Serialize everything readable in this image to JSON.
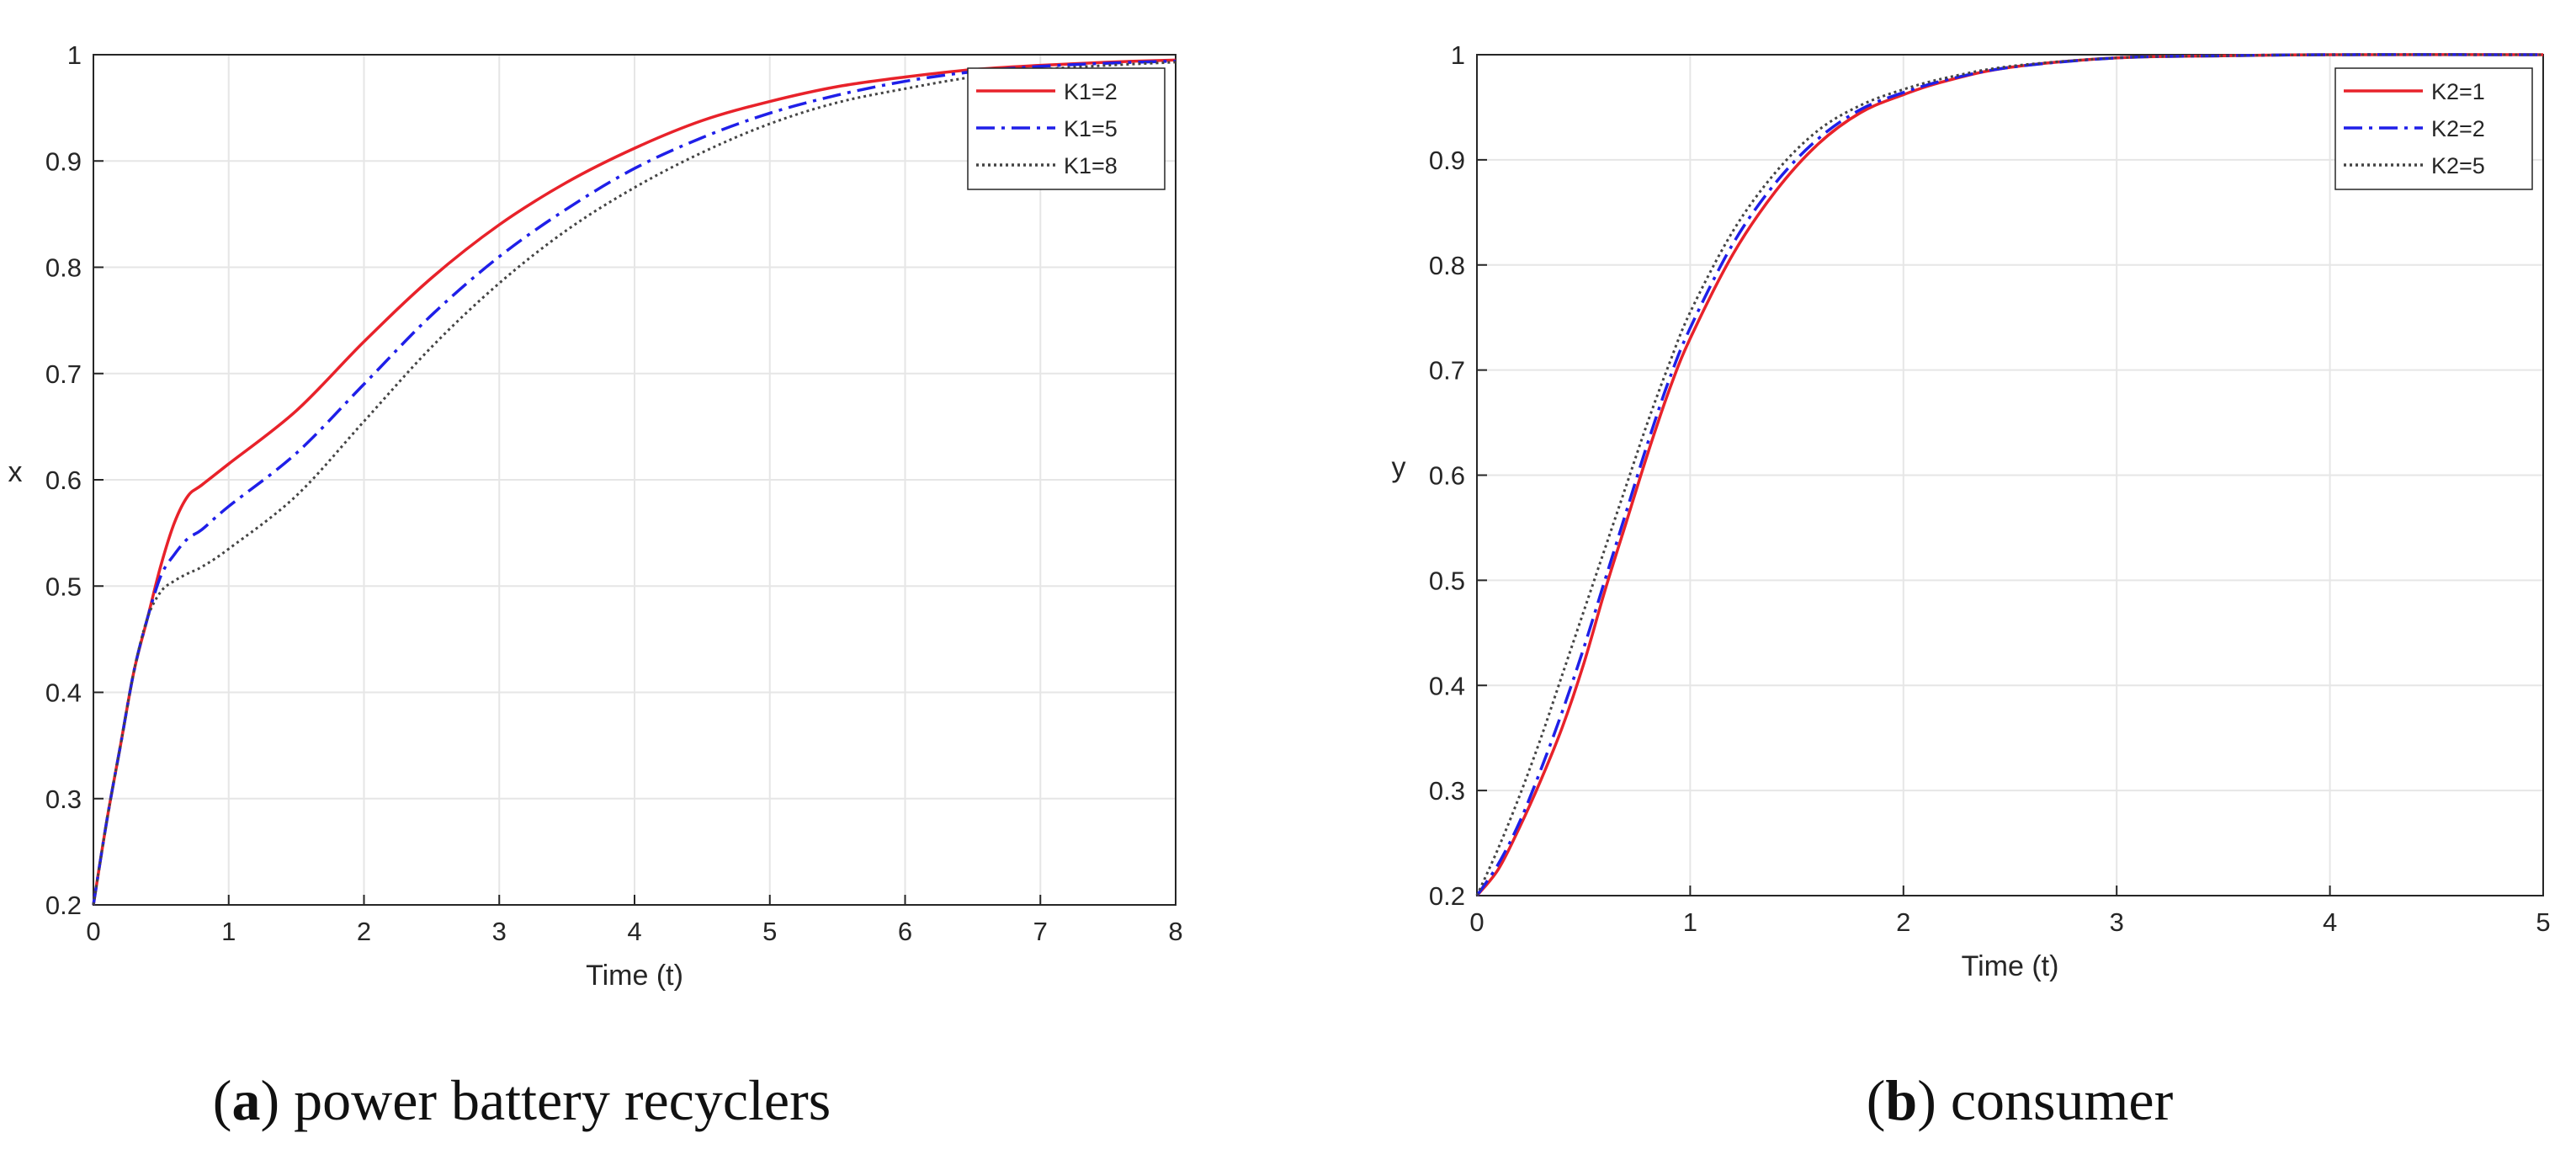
{
  "chart_data": [
    {
      "type": "line",
      "caption_letter": "a",
      "caption_text": "power battery recyclers",
      "xlabel": "Time (t)",
      "ylabel": "x",
      "xlim": [
        0,
        8
      ],
      "ylim": [
        0.2,
        1
      ],
      "xticks": [
        "0",
        "1",
        "2",
        "3",
        "4",
        "5",
        "6",
        "7",
        "8"
      ],
      "yticks": [
        "0.2",
        "0.3",
        "0.4",
        "0.5",
        "0.6",
        "0.7",
        "0.8",
        "0.9",
        "1"
      ],
      "grid": true,
      "legend_position": "top-right",
      "x": [
        0,
        0.1,
        0.2,
        0.3,
        0.4,
        0.5,
        0.6,
        0.7,
        0.8,
        1.0,
        1.5,
        2.0,
        2.5,
        3.0,
        3.5,
        4.0,
        4.5,
        5.0,
        5.5,
        6.0,
        6.5,
        7.0,
        7.5,
        8.0
      ],
      "series": [
        {
          "name": "K1=2",
          "color": "#e8222a",
          "dash": "solid",
          "values": [
            0.2,
            0.28,
            0.35,
            0.42,
            0.47,
            0.52,
            0.56,
            0.585,
            0.595,
            0.615,
            0.665,
            0.73,
            0.79,
            0.84,
            0.88,
            0.912,
            0.938,
            0.956,
            0.97,
            0.979,
            0.986,
            0.99,
            0.993,
            0.995
          ]
        },
        {
          "name": "K1=5",
          "color": "#1f1fe8",
          "dash": "dashdot",
          "values": [
            0.2,
            0.28,
            0.35,
            0.42,
            0.47,
            0.51,
            0.53,
            0.545,
            0.553,
            0.575,
            0.625,
            0.69,
            0.755,
            0.81,
            0.855,
            0.893,
            0.922,
            0.945,
            0.962,
            0.975,
            0.984,
            0.989,
            0.992,
            0.994
          ]
        },
        {
          "name": "K1=8",
          "color": "#444444",
          "dash": "dotted",
          "values": [
            0.2,
            0.28,
            0.35,
            0.42,
            0.47,
            0.495,
            0.505,
            0.512,
            0.518,
            0.535,
            0.585,
            0.655,
            0.725,
            0.785,
            0.835,
            0.875,
            0.908,
            0.935,
            0.955,
            0.968,
            0.979,
            0.986,
            0.99,
            0.993
          ]
        }
      ]
    },
    {
      "type": "line",
      "caption_letter": "b",
      "caption_text": "consumer",
      "xlabel": "Time (t)",
      "ylabel": "y",
      "xlim": [
        0,
        5
      ],
      "ylim": [
        0.2,
        1
      ],
      "xticks": [
        "0",
        "1",
        "2",
        "3",
        "4",
        "5"
      ],
      "yticks": [
        "0.2",
        "0.3",
        "0.4",
        "0.5",
        "0.6",
        "0.7",
        "0.8",
        "0.9",
        "1"
      ],
      "grid": true,
      "legend_position": "top-right",
      "x": [
        0,
        0.1,
        0.2,
        0.3,
        0.4,
        0.5,
        0.6,
        0.7,
        0.8,
        0.9,
        1.0,
        1.2,
        1.4,
        1.6,
        1.8,
        2.0,
        2.2,
        2.5,
        3.0,
        3.5,
        4.0,
        5.0
      ],
      "series": [
        {
          "name": "K2=1",
          "color": "#e8222a",
          "dash": "solid",
          "values": [
            0.2,
            0.225,
            0.265,
            0.31,
            0.36,
            0.42,
            0.49,
            0.555,
            0.62,
            0.68,
            0.73,
            0.81,
            0.87,
            0.915,
            0.945,
            0.962,
            0.975,
            0.988,
            0.997,
            0.999,
            1.0,
            1.0
          ]
        },
        {
          "name": "K2=2",
          "color": "#1f1fe8",
          "dash": "dashdot",
          "values": [
            0.2,
            0.23,
            0.27,
            0.32,
            0.375,
            0.435,
            0.5,
            0.565,
            0.63,
            0.69,
            0.74,
            0.82,
            0.878,
            0.92,
            0.948,
            0.964,
            0.976,
            0.988,
            0.997,
            0.999,
            1.0,
            1.0
          ]
        },
        {
          "name": "K2=5",
          "color": "#444444",
          "dash": "dotted",
          "values": [
            0.2,
            0.245,
            0.295,
            0.35,
            0.41,
            0.47,
            0.53,
            0.59,
            0.65,
            0.705,
            0.755,
            0.832,
            0.888,
            0.928,
            0.952,
            0.967,
            0.978,
            0.989,
            0.997,
            0.999,
            1.0,
            1.0
          ]
        }
      ]
    }
  ]
}
